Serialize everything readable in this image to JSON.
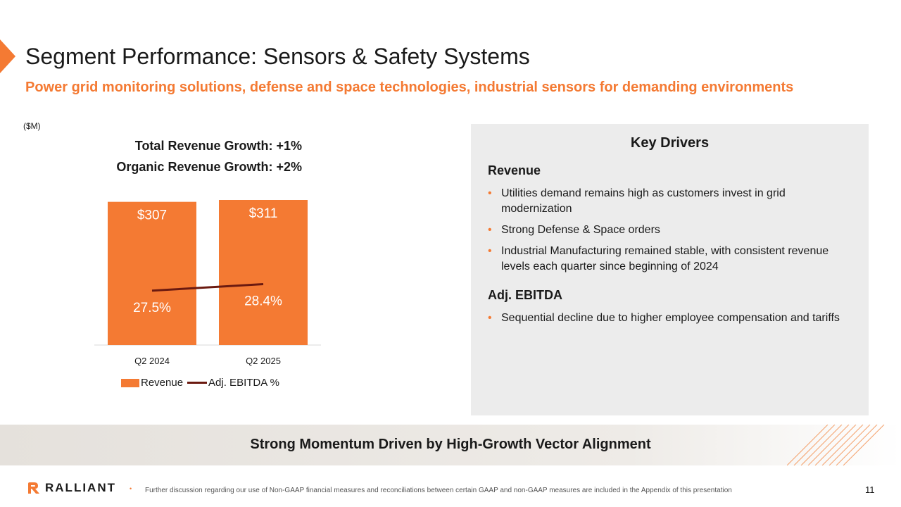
{
  "header": {
    "title": "Segment Performance: Sensors & Safety Systems",
    "subtitle": "Power grid monitoring solutions, defense and space technologies, industrial sensors for demanding environments"
  },
  "chart_panel": {
    "units": "($M)",
    "total_growth": "Total Revenue Growth: +1%",
    "organic_growth": "Organic Revenue Growth: +2%"
  },
  "chart_data": {
    "type": "bar",
    "categories": [
      "Q2 2024",
      "Q2 2025"
    ],
    "series": [
      {
        "name": "Revenue",
        "type": "bar",
        "values": [
          307,
          311
        ],
        "labels": [
          "$307",
          "$311"
        ],
        "color": "#f47a33"
      },
      {
        "name": "Adj. EBITDA %",
        "type": "line",
        "values": [
          27.5,
          28.4
        ],
        "labels": [
          "27.5%",
          "28.4%"
        ],
        "color": "#6b1a10"
      }
    ],
    "legend": {
      "position": "bottom",
      "revenue": "Revenue",
      "ebitda": "Adj. EBITDA %"
    }
  },
  "drivers": {
    "title": "Key Drivers",
    "revenue_heading": "Revenue",
    "revenue_items": [
      "Utilities demand remains high as customers invest in grid modernization",
      "Strong Defense & Space orders",
      "Industrial Manufacturing remained stable, with consistent revenue levels each quarter since beginning of 2024"
    ],
    "ebitda_heading": "Adj. EBITDA",
    "ebitda_items": [
      "Sequential decline due to higher employee compensation and tariffs"
    ]
  },
  "banner": {
    "text": "Strong Momentum Driven by High-Growth Vector Alignment"
  },
  "footer": {
    "logo_text": "RALLIANT",
    "bullet": "•",
    "note": "Further discussion regarding our use of Non-GAAP financial measures and reconciliations between certain GAAP and non-GAAP measures are included in the Appendix of this presentation",
    "page_number": "11"
  },
  "colors": {
    "accent": "#f47a33",
    "ebitda_line": "#6b1a10",
    "panel_bg": "#ececec"
  }
}
